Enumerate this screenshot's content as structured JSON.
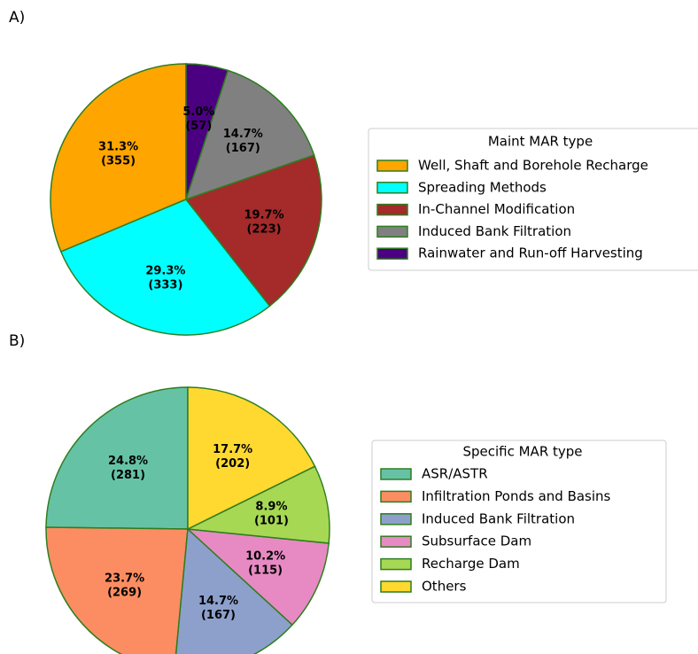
{
  "chart_data": [
    {
      "type": "pie",
      "panel_label": "A)",
      "legend_title": "Maint MAR type",
      "categories": [
        "Well, Shaft and Borehole Recharge",
        "Spreading Methods",
        "In-Channel Modification",
        "Induced Bank Filtration",
        "Rainwater and Run-off Harvesting"
      ],
      "values": [
        31.3,
        29.3,
        19.7,
        14.7,
        5.0
      ],
      "value_labels": [
        "31.3%",
        "29.3%",
        "19.7%",
        "14.7%",
        "5.0%"
      ],
      "counts": [
        355,
        333,
        223,
        167,
        57
      ],
      "count_labels": [
        "(355)",
        "(333)",
        "(223)",
        "(167)",
        "(57)"
      ],
      "colors": [
        "#FFA500",
        "#00FFFF",
        "#A52A2A",
        "#808080",
        "#4B0082"
      ],
      "edge_color": "#2e7d1f",
      "start_angle": 90,
      "counterclock": true
    },
    {
      "type": "pie",
      "panel_label": "B)",
      "legend_title": "Specific MAR type",
      "categories": [
        "ASR/ASTR",
        "Infiltration Ponds and Basins",
        "Induced Bank Filtration",
        "Subsurface Dam",
        "Recharge Dam",
        "Others"
      ],
      "values": [
        24.8,
        23.7,
        14.7,
        10.2,
        8.9,
        17.7
      ],
      "value_labels": [
        "24.8%",
        "23.7%",
        "14.7%",
        "10.2%",
        "8.9%",
        "17.7%"
      ],
      "counts": [
        281,
        269,
        167,
        115,
        101,
        202
      ],
      "count_labels": [
        "(281)",
        "(269)",
        "(167)",
        "(115)",
        "(101)",
        "(202)"
      ],
      "colors": [
        "#66c2a5",
        "#fc8d62",
        "#8da0cb",
        "#e78ac3",
        "#a6d854",
        "#ffd92f"
      ],
      "edge_color": "#2e7d1f",
      "start_angle": 90,
      "counterclock": true
    }
  ]
}
